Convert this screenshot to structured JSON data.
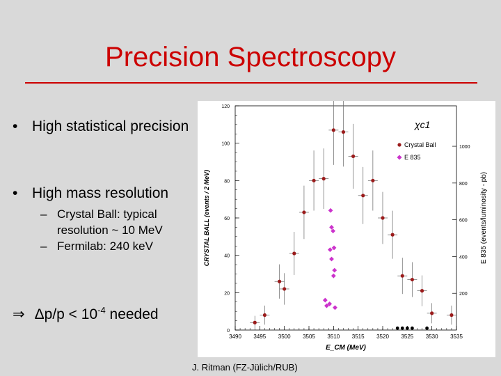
{
  "slide": {
    "title": "Precision Spectroscopy",
    "bullets": [
      {
        "text": "High statistical precision"
      },
      {
        "text": "High mass resolution"
      }
    ],
    "sub_bullets": [
      {
        "text": "Crystal Ball: typical resolution ~ 10 MeV"
      },
      {
        "text": "Fermilab: 240 keV"
      }
    ],
    "formula": {
      "arrow": "⇒",
      "text": "Δp/p < 10",
      "exponent": "-4",
      "suffix": " needed"
    },
    "footer": "J. Ritman  (FZ-Jülich/RUB)",
    "colors": {
      "title": "#cc0000",
      "crystal_ball": "#9b1b1b",
      "e835": "#cc33cc",
      "background_points": "#000000"
    }
  },
  "chart_data": {
    "type": "scatter",
    "title": "χc1",
    "xlabel": "E_CM (MeV)",
    "ylabel": "CRYSTAL BALL (events / 2 MeV)",
    "y2label": "E 835 (events/luminosity - pb)",
    "xlim": [
      3490,
      3535
    ],
    "ylim": [
      0,
      120
    ],
    "x_ticks": [
      "3490",
      "3495",
      "3500",
      "3505",
      "3510",
      "3515",
      "3520",
      "3525",
      "3530",
      "3535"
    ],
    "y_ticks": [
      "0",
      "20",
      "40",
      "60",
      "80",
      "100",
      "120"
    ],
    "y2_ticks": [
      "200",
      "400",
      "600",
      "800",
      "1000"
    ],
    "legend": "top-right",
    "series": [
      {
        "name": "Crystal Ball",
        "marker": "circle",
        "points": [
          {
            "x": 3494,
            "y": 4
          },
          {
            "x": 3496,
            "y": 8
          },
          {
            "x": 3499,
            "y": 26
          },
          {
            "x": 3500,
            "y": 22
          },
          {
            "x": 3502,
            "y": 41
          },
          {
            "x": 3504,
            "y": 63
          },
          {
            "x": 3506,
            "y": 80
          },
          {
            "x": 3508,
            "y": 81
          },
          {
            "x": 3510,
            "y": 107
          },
          {
            "x": 3512,
            "y": 106
          },
          {
            "x": 3514,
            "y": 93
          },
          {
            "x": 3516,
            "y": 72
          },
          {
            "x": 3518,
            "y": 80
          },
          {
            "x": 3520,
            "y": 60
          },
          {
            "x": 3522,
            "y": 51
          },
          {
            "x": 3524,
            "y": 29
          },
          {
            "x": 3526,
            "y": 27
          },
          {
            "x": 3528,
            "y": 21
          },
          {
            "x": 3530,
            "y": 9
          },
          {
            "x": 3534,
            "y": 8
          }
        ]
      },
      {
        "name": "E 835",
        "marker": "diamond",
        "points": [
          {
            "x": 3508.3,
            "y": 16
          },
          {
            "x": 3508.6,
            "y": 13
          },
          {
            "x": 3509.4,
            "y": 64
          },
          {
            "x": 3509.6,
            "y": 55
          },
          {
            "x": 3509.9,
            "y": 53
          },
          {
            "x": 3510.1,
            "y": 44
          },
          {
            "x": 3509.3,
            "y": 43
          },
          {
            "x": 3509.6,
            "y": 38
          },
          {
            "x": 3510.2,
            "y": 32
          },
          {
            "x": 3510.0,
            "y": 29
          },
          {
            "x": 3509.2,
            "y": 14
          },
          {
            "x": 3510.3,
            "y": 12
          }
        ]
      },
      {
        "name": "",
        "marker": "dot",
        "points": [
          {
            "x": 3523.0,
            "y": 1
          },
          {
            "x": 3524.0,
            "y": 1
          },
          {
            "x": 3525.0,
            "y": 1
          },
          {
            "x": 3526.0,
            "y": 1
          },
          {
            "x": 3529.0,
            "y": 1
          }
        ]
      }
    ]
  }
}
